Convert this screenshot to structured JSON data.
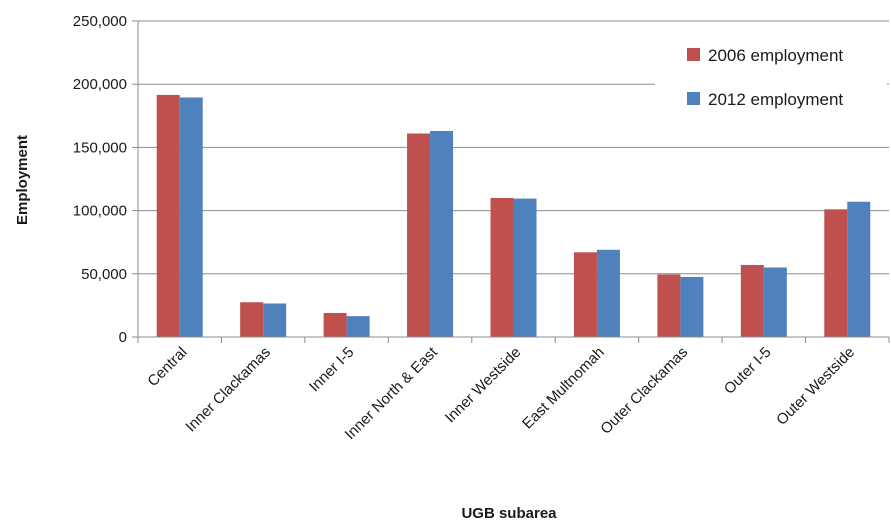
{
  "chart_data": {
    "type": "bar",
    "title": "",
    "xlabel": "UGB subarea",
    "ylabel": "Employment",
    "ylim": [
      0,
      250000
    ],
    "yticks": [
      "0",
      "50,000",
      "100,000",
      "150,000",
      "200,000",
      "250,000"
    ],
    "ytick_values": [
      0,
      50000,
      100000,
      150000,
      200000,
      250000
    ],
    "grid": true,
    "legend_position": "top-right",
    "categories": [
      "Central",
      "Inner Clackamas",
      "Inner I-5",
      "Inner North & East",
      "Inner Westside",
      "East Multnomah",
      "Outer Clackamas",
      "Outer I-5",
      "Outer Westside"
    ],
    "series": [
      {
        "name": "2006 employment",
        "color": "#c0504d",
        "values": [
          191500,
          27500,
          19000,
          161000,
          110000,
          67000,
          49500,
          57000,
          101000
        ]
      },
      {
        "name": "2012 employment",
        "color": "#4f81bd",
        "values": [
          189500,
          26500,
          16500,
          163000,
          109500,
          69000,
          47500,
          55000,
          107000
        ]
      }
    ]
  }
}
